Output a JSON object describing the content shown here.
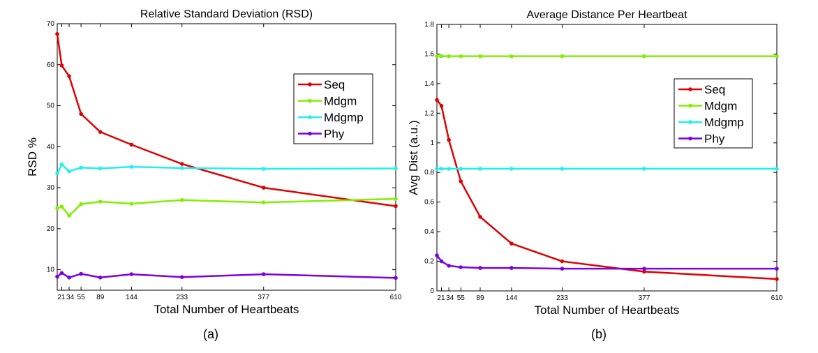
{
  "chart_data": [
    {
      "type": "line",
      "title": "Relative Standard Deviation (RSD)",
      "xlabel": "Total Number of Heartbeats",
      "ylabel": "RSD %",
      "caption": "(a)",
      "x": [
        13,
        21,
        34,
        55,
        89,
        144,
        233,
        377,
        610
      ],
      "xticks": [
        21,
        34,
        55,
        89,
        144,
        233,
        377,
        610
      ],
      "xtick_labels": [
        "21",
        "34",
        "55",
        "89",
        "144",
        "233",
        "377",
        "610"
      ],
      "yticks": [
        10,
        20,
        30,
        40,
        50,
        60,
        70
      ],
      "ytick_labels": [
        "10",
        "20",
        "30",
        "40",
        "50",
        "60",
        "70"
      ],
      "xlim": [
        13,
        610
      ],
      "ylim": [
        5,
        70
      ],
      "legend_position": "upper-right",
      "series": [
        {
          "name": "Seq",
          "color": "#e00000",
          "values": [
            67.5,
            59.8,
            57.2,
            48.0,
            43.6,
            40.5,
            35.8,
            30.0,
            25.5
          ]
        },
        {
          "name": "Mdgm",
          "color": "#80f000",
          "values": [
            25.0,
            25.4,
            23.2,
            26.0,
            26.6,
            26.1,
            27.0,
            26.4,
            27.3
          ]
        },
        {
          "name": "Mdgmp",
          "color": "#20f0f0",
          "values": [
            33.5,
            35.7,
            34.0,
            34.9,
            34.7,
            35.1,
            34.8,
            34.6,
            34.7
          ]
        },
        {
          "name": "Phy",
          "color": "#7a00e8",
          "values": [
            8.3,
            9.2,
            8.1,
            9.0,
            8.1,
            8.9,
            8.2,
            8.9,
            8.0
          ]
        }
      ]
    },
    {
      "type": "line",
      "title": "Average Distance Per Heartbeat",
      "xlabel": "Total Number of Heartbeats",
      "ylabel": "Avg Dist  (a.u.)",
      "caption": "(b)",
      "x": [
        13,
        21,
        34,
        55,
        89,
        144,
        233,
        377,
        610
      ],
      "xticks": [
        21,
        34,
        55,
        89,
        144,
        233,
        377,
        610
      ],
      "xtick_labels": [
        "21",
        "34",
        "55",
        "89",
        "144",
        "233",
        "377",
        "610"
      ],
      "yticks": [
        0,
        0.2,
        0.4,
        0.6,
        0.8,
        1.0,
        1.2,
        1.4,
        1.6,
        1.8
      ],
      "ytick_labels": [
        "0",
        "0.2",
        "0.4",
        "0.6",
        "0.8",
        "1",
        "1.2",
        "1.4",
        "1.6",
        "1.8"
      ],
      "xlim": [
        13,
        610
      ],
      "ylim": [
        0,
        1.8
      ],
      "legend_position": "upper-right",
      "series": [
        {
          "name": "Seq",
          "color": "#e00000",
          "values": [
            1.29,
            1.25,
            1.02,
            0.74,
            0.5,
            0.32,
            0.2,
            0.13,
            0.08
          ]
        },
        {
          "name": "Mdgm",
          "color": "#80f000",
          "values": [
            1.585,
            1.585,
            1.585,
            1.585,
            1.585,
            1.585,
            1.585,
            1.585,
            1.585
          ]
        },
        {
          "name": "Mdgmp",
          "color": "#20f0f0",
          "values": [
            0.825,
            0.825,
            0.825,
            0.825,
            0.825,
            0.825,
            0.825,
            0.825,
            0.825
          ]
        },
        {
          "name": "Phy",
          "color": "#7a00e8",
          "values": [
            0.24,
            0.2,
            0.17,
            0.16,
            0.155,
            0.155,
            0.15,
            0.15,
            0.15
          ]
        }
      ]
    }
  ]
}
